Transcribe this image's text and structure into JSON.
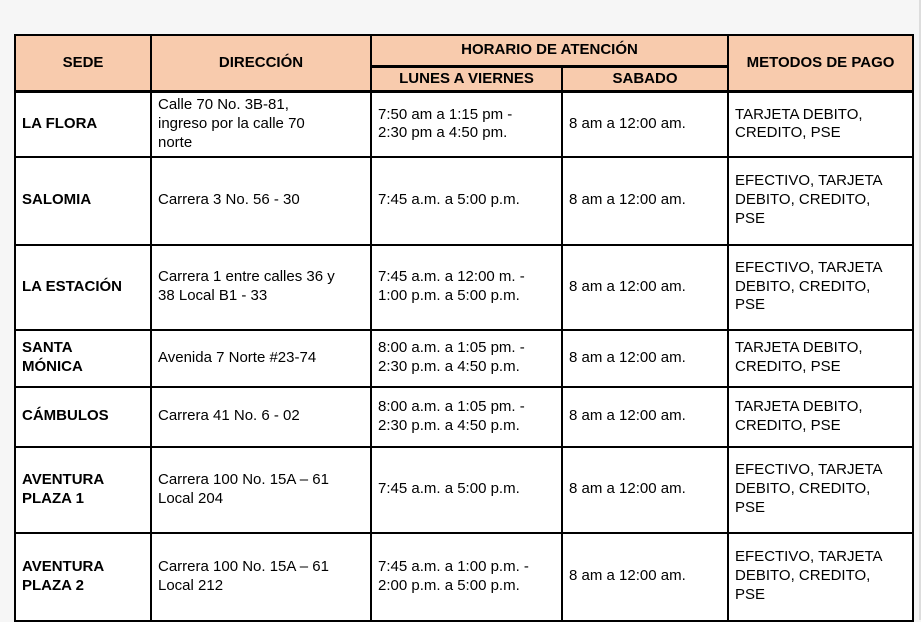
{
  "page": {
    "background_color": "#f6f6f6",
    "accent_color": "#f8cbad",
    "border_color": "#000000"
  },
  "table": {
    "headers": {
      "sede": "SEDE",
      "direccion": "DIRECCIÓN",
      "horario": "HORARIO DE ATENCIÓN",
      "lunes_viernes": "LUNES A VIERNES",
      "sabado": "SABADO",
      "metodos": "METODOS DE PAGO"
    },
    "rows": [
      {
        "sede": "LA FLORA",
        "direccion": "Calle 70 No. 3B-81,\ningreso por la calle 70\nnorte",
        "lunes_viernes": "7:50 am a 1:15 pm -\n2:30 pm a 4:50 pm.",
        "sabado": "8 am a 12:00 am.",
        "metodos": "TARJETA DEBITO,\nCREDITO, PSE"
      },
      {
        "sede": "SALOMIA",
        "direccion": "Carrera 3 No. 56 - 30",
        "lunes_viernes": "7:45 a.m. a 5:00 p.m.",
        "sabado": "8 am a 12:00 am.",
        "metodos": "EFECTIVO, TARJETA\nDEBITO, CREDITO,\nPSE"
      },
      {
        "sede": "LA ESTACIÓN",
        "direccion": "Carrera 1 entre calles 36 y\n38 Local B1 - 33",
        "lunes_viernes": "7:45 a.m. a 12:00 m. -\n1:00 p.m. a 5:00 p.m.",
        "sabado": "8 am a 12:00 am.",
        "metodos": "EFECTIVO, TARJETA\nDEBITO, CREDITO,\nPSE"
      },
      {
        "sede": "SANTA\nMÓNICA",
        "direccion": "Avenida 7 Norte #23-74",
        "lunes_viernes": "8:00 a.m. a 1:05 pm. -\n2:30 p.m. a 4:50 p.m.",
        "sabado": "8 am a 12:00 am.",
        "metodos": "TARJETA DEBITO,\nCREDITO, PSE"
      },
      {
        "sede": "CÁMBULOS",
        "direccion": "Carrera 41 No. 6 - 02",
        "lunes_viernes": "8:00 a.m. a 1:05 pm. -\n2:30 p.m. a 4:50 p.m.",
        "sabado": "8 am a 12:00 am.",
        "metodos": "TARJETA DEBITO,\nCREDITO, PSE"
      },
      {
        "sede": "AVENTURA\nPLAZA 1",
        "direccion": "Carrera 100 No. 15A – 61\nLocal 204",
        "lunes_viernes": "7:45 a.m. a 5:00 p.m.",
        "sabado": "8 am a 12:00 am.",
        "metodos": "EFECTIVO, TARJETA\nDEBITO, CREDITO,\nPSE"
      },
      {
        "sede": "AVENTURA\nPLAZA 2",
        "direccion": "Carrera 100 No. 15A – 61\nLocal 212",
        "lunes_viernes": "7:45 a.m. a 1:00 p.m. -\n2:00 p.m. a 5:00 p.m.",
        "sabado": "8 am a 12:00 am.",
        "metodos": "EFECTIVO, TARJETA\nDEBITO, CREDITO,\nPSE"
      }
    ]
  }
}
